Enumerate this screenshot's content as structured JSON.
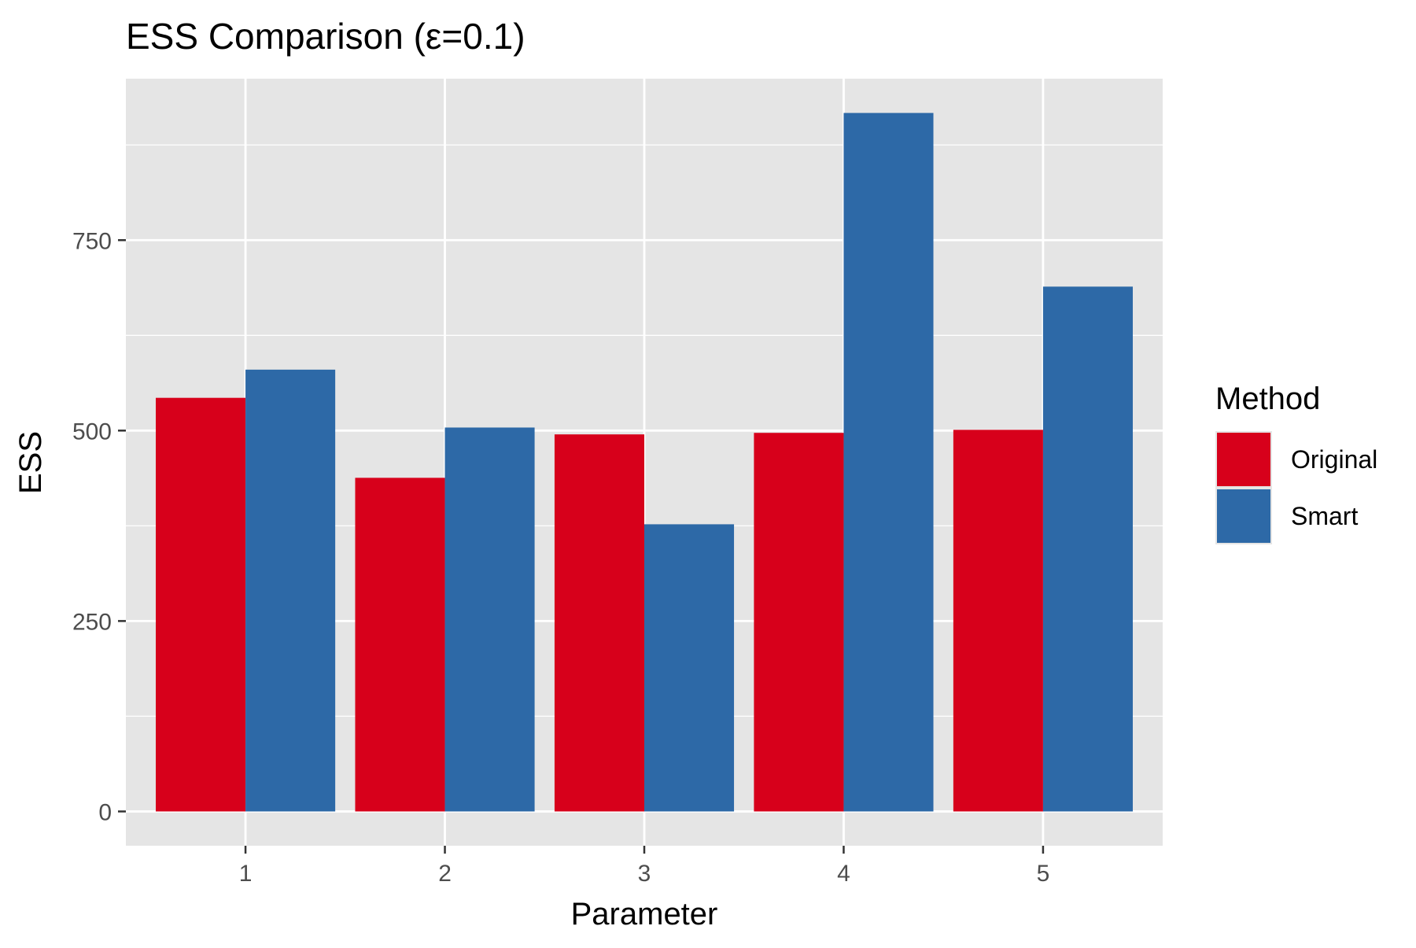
{
  "chart_data": {
    "type": "bar",
    "title": "ESS Comparison (ε=0.1)",
    "xlabel": "Parameter",
    "ylabel": "ESS",
    "categories": [
      "1",
      "2",
      "3",
      "4",
      "5"
    ],
    "series": [
      {
        "name": "Original",
        "color": "#d7001b",
        "values": [
          543,
          438,
          495,
          497,
          501
        ]
      },
      {
        "name": "Smart",
        "color": "#2d69a7",
        "values": [
          580,
          504,
          377,
          917,
          689
        ]
      }
    ],
    "ylim": [
      -45,
      962
    ],
    "yticks": [
      0,
      250,
      500,
      750
    ],
    "grid": true,
    "legend": {
      "title": "Method",
      "position": "right"
    },
    "colors": {
      "panel_background": "#e5e5e5",
      "gridline": "#ffffff",
      "tick_label": "#4d4d4d"
    }
  }
}
